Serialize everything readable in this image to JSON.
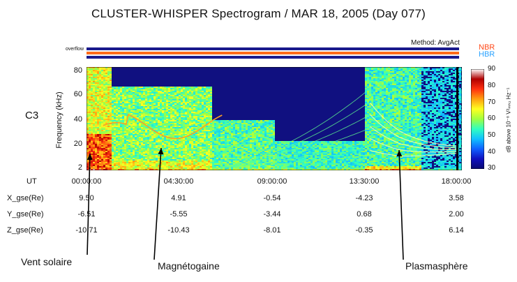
{
  "chart_data": {
    "type": "heatmap",
    "title": "CLUSTER-WHISPER Spectrogram / MAR 18, 2005 (Day 077)",
    "method": "Method: AvgAct",
    "modes": [
      {
        "name": "NBR",
        "color": "#ff4a1a"
      },
      {
        "name": "HBR",
        "color": "#2aa2ff"
      }
    ],
    "overflow_label": "overflow",
    "spacecraft": "C3",
    "ylabel": "Frequency (kHz)",
    "yticks": [
      2,
      20,
      40,
      60,
      80
    ],
    "ylim": [
      2,
      80
    ],
    "colorbar": {
      "label": "dB above 10⁻⁸ V²ₘₕ₂ Hz⁻¹",
      "ticks": [
        30,
        40,
        50,
        60,
        70,
        80,
        90
      ],
      "range": [
        30,
        90
      ],
      "stops": [
        "#0a0a70",
        "#1010c0",
        "#1060ff",
        "#10c0ff",
        "#30ffc0",
        "#a0ff40",
        "#ffff20",
        "#ffa010",
        "#ff3010",
        "#b00000",
        "#ffffff"
      ]
    },
    "x_row_label": "UT",
    "x": [
      "00:00:00",
      "04:30:00",
      "09:00:00",
      "13:30:00",
      "18:00:00"
    ],
    "xlim_hours": [
      0,
      18
    ],
    "ephemeris": [
      {
        "label": "X_gse(Re)",
        "values": [
          "9.50",
          "4.91",
          "-0.54",
          "-4.23",
          "3.58"
        ]
      },
      {
        "label": "Y_gse(Re)",
        "values": [
          "-6.51",
          "-5.55",
          "-3.44",
          "0.68",
          "2.00"
        ]
      },
      {
        "label": "Z_gse(Re)",
        "values": [
          "-10.71",
          "-10.43",
          "-8.01",
          "-0.35",
          "6.14"
        ]
      }
    ],
    "annotations": [
      {
        "text": "Vent solaire",
        "time_hours": 0.2
      },
      {
        "text": "Magnétogaine",
        "time_hours": 3.4
      },
      {
        "text": "Plasmasphère",
        "time_hours": 15.4
      }
    ]
  }
}
